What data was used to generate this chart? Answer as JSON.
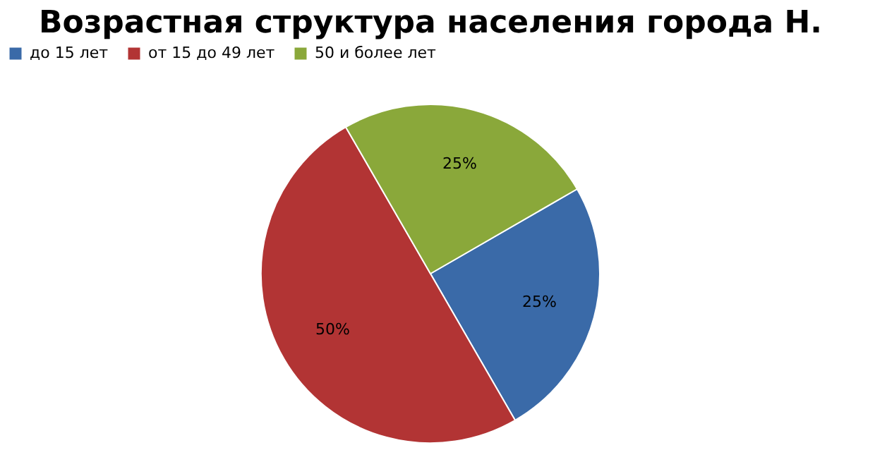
{
  "chart_data": {
    "type": "pie",
    "title": "Возрастная структура населения города Н.",
    "categories": [
      "до 15 лет",
      "от 15 до 49 лет",
      "50 и более лет"
    ],
    "values": [
      25,
      50,
      25
    ],
    "colors": [
      "#3a6aa8",
      "#b23434",
      "#8aa83a"
    ],
    "value_labels": [
      "25%",
      "50%",
      "25%"
    ],
    "legend": "top"
  }
}
